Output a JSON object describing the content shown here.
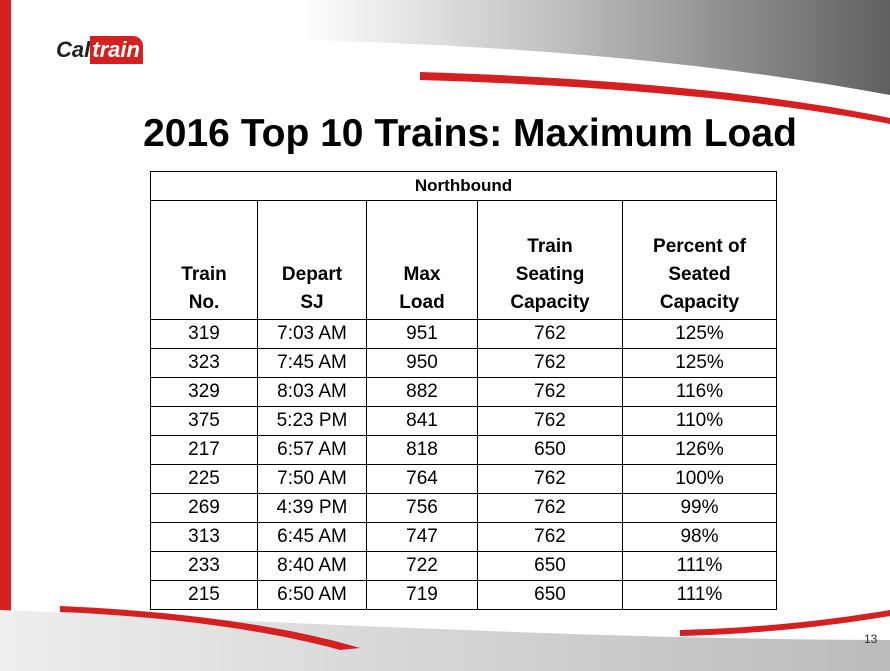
{
  "logo": {
    "parts": [
      "Cal",
      "train"
    ]
  },
  "title": "2016 Top 10 Trains: Maximum Load",
  "table": {
    "group_header": "Northbound",
    "columns": [
      [
        "Train",
        "No."
      ],
      [
        "Depart",
        "SJ"
      ],
      [
        "Max",
        "Load"
      ],
      [
        "Train",
        "Seating",
        "Capacity"
      ],
      [
        "Percent of",
        "Seated",
        "Capacity"
      ]
    ],
    "rows": [
      [
        "319",
        "7:03 AM",
        "951",
        "762",
        "125%"
      ],
      [
        "323",
        "7:45 AM",
        "950",
        "762",
        "125%"
      ],
      [
        "329",
        "8:03 AM",
        "882",
        "762",
        "116%"
      ],
      [
        "375",
        "5:23 PM",
        "841",
        "762",
        "110%"
      ],
      [
        "217",
        "6:57 AM",
        "818",
        "650",
        "126%"
      ],
      [
        "225",
        "7:50 AM",
        "764",
        "762",
        "100%"
      ],
      [
        "269",
        "4:39 PM",
        "756",
        "762",
        "99%"
      ],
      [
        "313",
        "6:45 AM",
        "747",
        "762",
        "98%"
      ],
      [
        "233",
        "8:40 AM",
        "722",
        "650",
        "111%"
      ],
      [
        "215",
        "6:50 AM",
        "719",
        "650",
        "111%"
      ]
    ]
  },
  "page_number": "13"
}
